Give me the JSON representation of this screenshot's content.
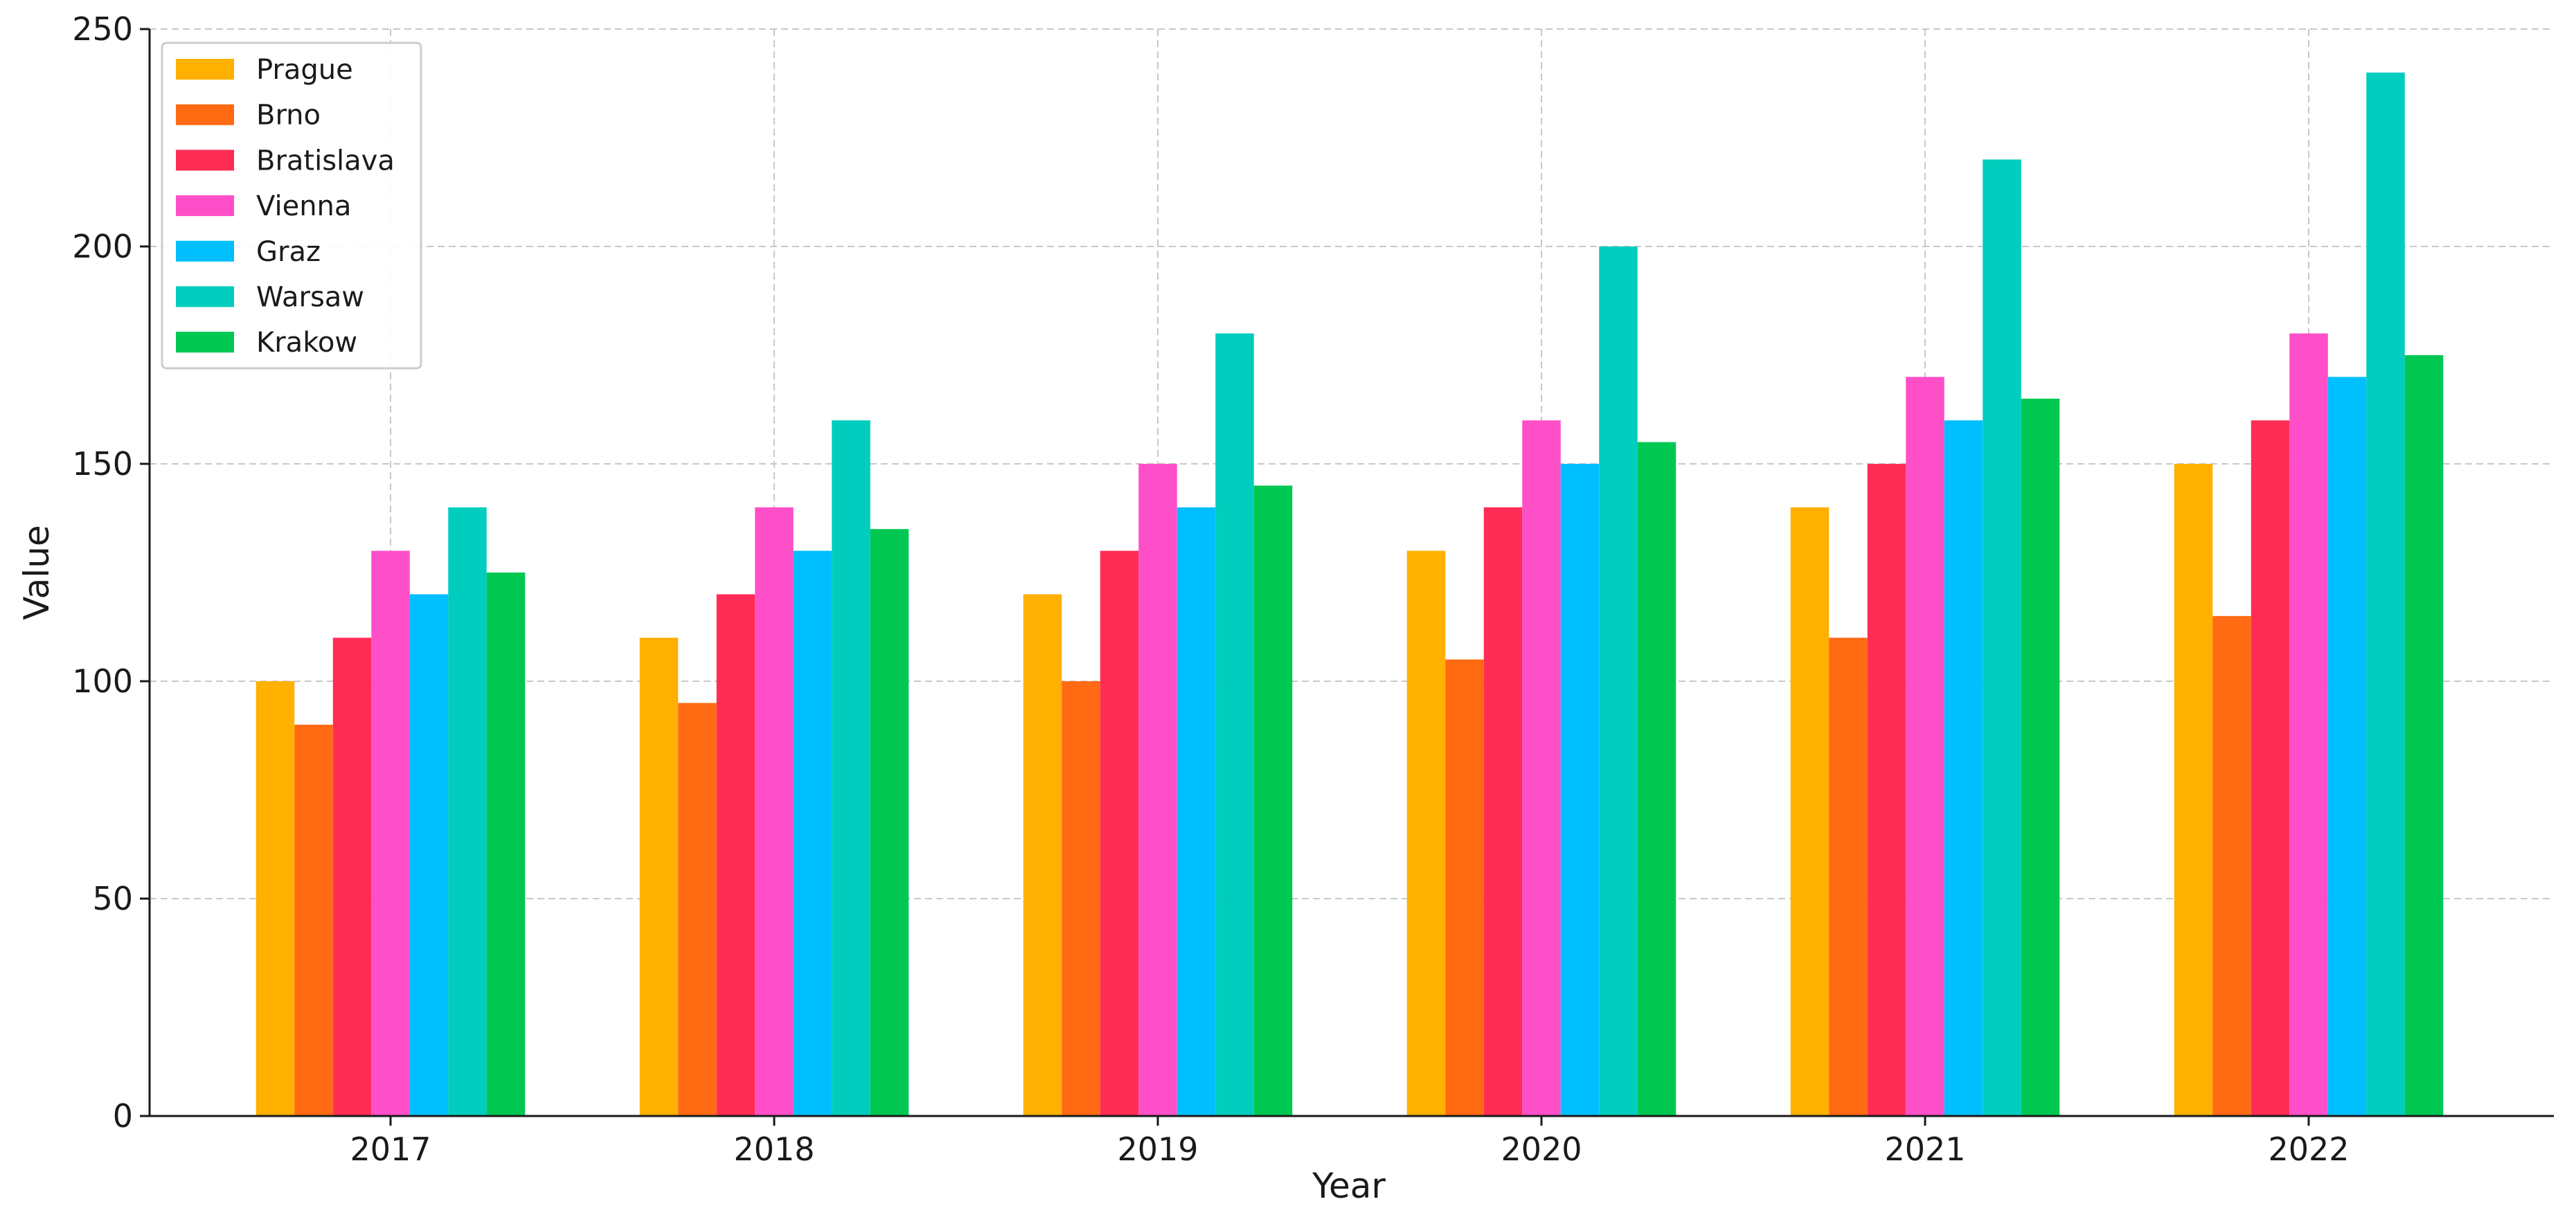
{
  "chart_data": {
    "type": "bar",
    "title": "",
    "xlabel": "Year",
    "ylabel": "Value",
    "ylim": [
      0,
      250
    ],
    "yticks": [
      0,
      50,
      100,
      150,
      200,
      250
    ],
    "grid": true,
    "legend_position": "top-left",
    "categories": [
      "2017",
      "2018",
      "2019",
      "2020",
      "2021",
      "2022"
    ],
    "series": [
      {
        "name": "Prague",
        "color": "#FFB000",
        "values": [
          100,
          110,
          120,
          130,
          140,
          150
        ]
      },
      {
        "name": "Brno",
        "color": "#FF6A13",
        "values": [
          90,
          95,
          100,
          105,
          110,
          115
        ]
      },
      {
        "name": "Bratislava",
        "color": "#FF2D55",
        "values": [
          110,
          120,
          130,
          140,
          150,
          160
        ]
      },
      {
        "name": "Vienna",
        "color": "#FF4FC8",
        "values": [
          130,
          140,
          150,
          160,
          170,
          180
        ]
      },
      {
        "name": "Graz",
        "color": "#00BFFF",
        "values": [
          120,
          130,
          140,
          150,
          160,
          170
        ]
      },
      {
        "name": "Warsaw",
        "color": "#00CDBE",
        "values": [
          140,
          160,
          180,
          200,
          220,
          240
        ]
      },
      {
        "name": "Krakow",
        "color": "#00C853",
        "values": [
          125,
          135,
          145,
          155,
          165,
          175
        ]
      }
    ]
  }
}
